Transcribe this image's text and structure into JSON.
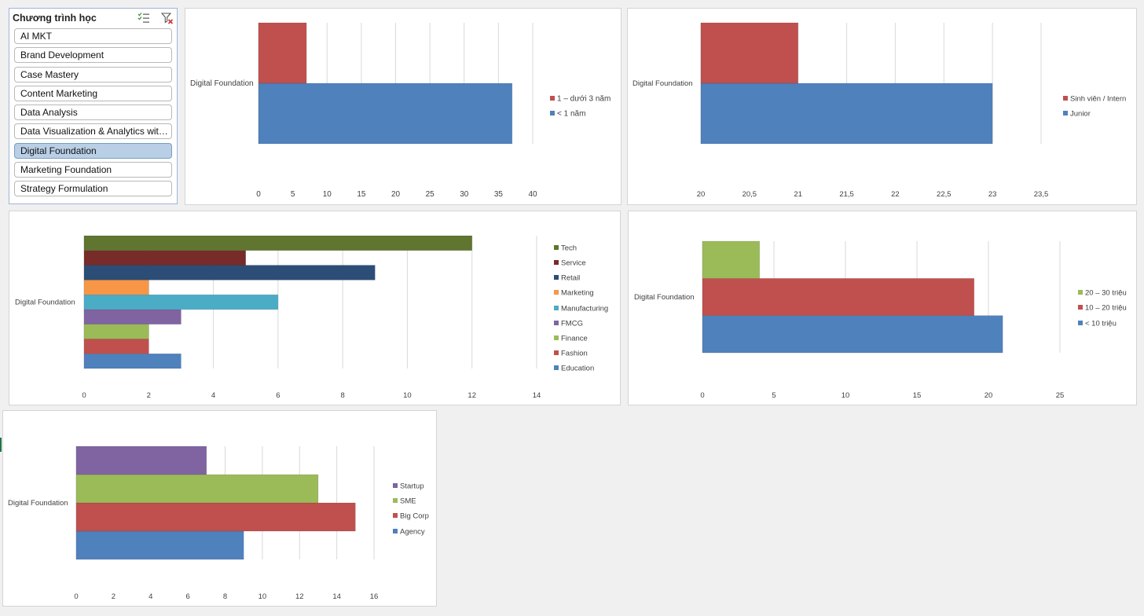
{
  "slicer": {
    "title": "Chương trình học",
    "icons": [
      "multi-select-icon",
      "clear-filter-icon"
    ],
    "items": [
      {
        "label": "AI MKT",
        "selected": false
      },
      {
        "label": "Brand Development",
        "selected": false
      },
      {
        "label": "Case Mastery",
        "selected": false
      },
      {
        "label": "Content Marketing",
        "selected": false
      },
      {
        "label": "Data Analysis",
        "selected": false
      },
      {
        "label": "Data Visualization & Analytics with...",
        "selected": false
      },
      {
        "label": "Digital Foundation",
        "selected": true
      },
      {
        "label": "Marketing Foundation",
        "selected": false
      },
      {
        "label": "Strategy Formulation",
        "selected": false
      }
    ]
  },
  "chart_data": [
    {
      "type": "bar",
      "category": "Digital Foundation",
      "series": [
        {
          "name": "< 1 năm",
          "value": 37,
          "color": "#4f81bd"
        },
        {
          "name": "1 – dưới 3 năm",
          "value": 7,
          "color": "#c0504d"
        }
      ],
      "xticks": [
        "0",
        "5",
        "10",
        "15",
        "20",
        "25",
        "30",
        "35",
        "40"
      ],
      "xlim": [
        0,
        40
      ]
    },
    {
      "type": "bar",
      "category": "Digital Foundation",
      "series": [
        {
          "name": "Junior",
          "value": 23,
          "color": "#4f81bd"
        },
        {
          "name": "Sinh viên / Intern",
          "value": 21,
          "color": "#c0504d"
        }
      ],
      "xticks": [
        "20",
        "20,5",
        "21",
        "21,5",
        "22",
        "22,5",
        "23",
        "23,5"
      ],
      "xlim": [
        20,
        23.5
      ]
    },
    {
      "type": "bar",
      "category": "Digital Foundation",
      "series": [
        {
          "name": "Education",
          "value": 3,
          "color": "#4f81bd"
        },
        {
          "name": "Fashion",
          "value": 2,
          "color": "#c0504d"
        },
        {
          "name": "Finance",
          "value": 2,
          "color": "#9bbb59"
        },
        {
          "name": "FMCG",
          "value": 3,
          "color": "#8064a2"
        },
        {
          "name": "Manufacturing",
          "value": 6,
          "color": "#4bacc6"
        },
        {
          "name": "Marketing",
          "value": 2,
          "color": "#f79646"
        },
        {
          "name": "Retail",
          "value": 9,
          "color": "#2c4d75"
        },
        {
          "name": "Service",
          "value": 5,
          "color": "#772c2a"
        },
        {
          "name": "Tech",
          "value": 12,
          "color": "#5f7530"
        }
      ],
      "xticks": [
        "0",
        "2",
        "4",
        "6",
        "8",
        "10",
        "12",
        "14"
      ],
      "xlim": [
        0,
        14
      ]
    },
    {
      "type": "bar",
      "category": "Digital Foundation",
      "series": [
        {
          "name": "< 10 triệu",
          "value": 21,
          "color": "#4f81bd"
        },
        {
          "name": "10 – 20 triệu",
          "value": 19,
          "color": "#c0504d"
        },
        {
          "name": "20 – 30 triệu",
          "value": 4,
          "color": "#9bbb59"
        }
      ],
      "xticks": [
        "0",
        "5",
        "10",
        "15",
        "20",
        "25"
      ],
      "xlim": [
        0,
        25
      ]
    },
    {
      "type": "bar",
      "category": "Digital Foundation",
      "series": [
        {
          "name": "Agency",
          "value": 9,
          "color": "#4f81bd"
        },
        {
          "name": "Big Corp",
          "value": 15,
          "color": "#c0504d"
        },
        {
          "name": "SME",
          "value": 13,
          "color": "#9bbb59"
        },
        {
          "name": "Startup",
          "value": 7,
          "color": "#8064a2"
        }
      ],
      "xticks": [
        "0",
        "2",
        "4",
        "6",
        "8",
        "10",
        "12",
        "14",
        "16"
      ],
      "xlim": [
        0,
        16
      ]
    }
  ]
}
